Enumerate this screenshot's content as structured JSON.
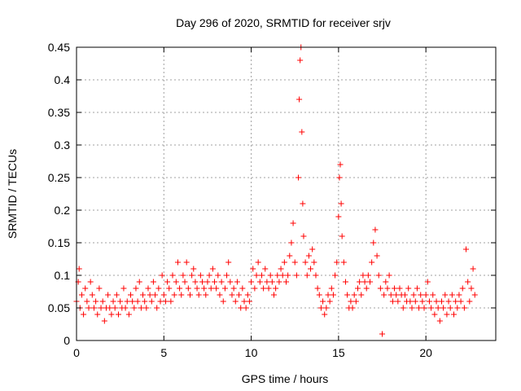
{
  "chart_data": {
    "type": "scatter",
    "title": "Day 296 of 2020, SRMTID for receiver srjv",
    "xlabel": "GPS time / hours",
    "ylabel": "SRMTID / TECUs",
    "xlim": [
      0,
      24
    ],
    "ylim": [
      0,
      0.45
    ],
    "xticks": [
      0,
      5,
      10,
      15,
      20
    ],
    "yticks": [
      0,
      0.05,
      0.1,
      0.15,
      0.2,
      0.25,
      0.3,
      0.35,
      0.4,
      0.45
    ],
    "xtick_labels": [
      "0",
      "5",
      "10",
      "15",
      "20"
    ],
    "ytick_labels": [
      "0",
      "0.05",
      "0.1",
      "0.15",
      "0.2",
      "0.25",
      "0.3",
      "0.35",
      "0.4",
      "0.45"
    ],
    "grid": true,
    "marker": "+",
    "colors": {
      "points": "#ff0000",
      "grid": "#a0a0a0",
      "axes": "#000000"
    },
    "series": [
      {
        "name": "srjv",
        "points": [
          [
            0.0,
            0.06
          ],
          [
            0.1,
            0.09
          ],
          [
            0.15,
            0.11
          ],
          [
            0.2,
            0.05
          ],
          [
            0.3,
            0.07
          ],
          [
            0.4,
            0.04
          ],
          [
            0.5,
            0.08
          ],
          [
            0.6,
            0.06
          ],
          [
            0.7,
            0.05
          ],
          [
            0.8,
            0.09
          ],
          [
            0.9,
            0.07
          ],
          [
            1.0,
            0.05
          ],
          [
            1.1,
            0.06
          ],
          [
            1.2,
            0.04
          ],
          [
            1.3,
            0.08
          ],
          [
            1.4,
            0.05
          ],
          [
            1.5,
            0.06
          ],
          [
            1.6,
            0.03
          ],
          [
            1.7,
            0.05
          ],
          [
            1.8,
            0.07
          ],
          [
            1.9,
            0.05
          ],
          [
            2.0,
            0.04
          ],
          [
            2.1,
            0.06
          ],
          [
            2.2,
            0.05
          ],
          [
            2.3,
            0.07
          ],
          [
            2.4,
            0.04
          ],
          [
            2.5,
            0.06
          ],
          [
            2.6,
            0.05
          ],
          [
            2.7,
            0.08
          ],
          [
            2.8,
            0.05
          ],
          [
            2.9,
            0.06
          ],
          [
            3.0,
            0.04
          ],
          [
            3.1,
            0.07
          ],
          [
            3.2,
            0.06
          ],
          [
            3.3,
            0.05
          ],
          [
            3.4,
            0.08
          ],
          [
            3.5,
            0.06
          ],
          [
            3.6,
            0.09
          ],
          [
            3.7,
            0.05
          ],
          [
            3.8,
            0.07
          ],
          [
            3.9,
            0.06
          ],
          [
            4.0,
            0.05
          ],
          [
            4.1,
            0.08
          ],
          [
            4.2,
            0.07
          ],
          [
            4.3,
            0.06
          ],
          [
            4.4,
            0.09
          ],
          [
            4.5,
            0.07
          ],
          [
            4.6,
            0.05
          ],
          [
            4.7,
            0.08
          ],
          [
            4.8,
            0.06
          ],
          [
            4.9,
            0.1
          ],
          [
            5.0,
            0.07
          ],
          [
            5.1,
            0.06
          ],
          [
            5.2,
            0.09
          ],
          [
            5.3,
            0.08
          ],
          [
            5.4,
            0.06
          ],
          [
            5.5,
            0.1
          ],
          [
            5.6,
            0.07
          ],
          [
            5.7,
            0.09
          ],
          [
            5.8,
            0.12
          ],
          [
            5.9,
            0.08
          ],
          [
            6.0,
            0.07
          ],
          [
            6.1,
            0.1
          ],
          [
            6.2,
            0.09
          ],
          [
            6.3,
            0.12
          ],
          [
            6.4,
            0.08
          ],
          [
            6.5,
            0.07
          ],
          [
            6.6,
            0.1
          ],
          [
            6.7,
            0.11
          ],
          [
            6.8,
            0.09
          ],
          [
            6.9,
            0.08
          ],
          [
            7.0,
            0.07
          ],
          [
            7.1,
            0.1
          ],
          [
            7.2,
            0.09
          ],
          [
            7.3,
            0.08
          ],
          [
            7.4,
            0.07
          ],
          [
            7.5,
            0.09
          ],
          [
            7.6,
            0.1
          ],
          [
            7.7,
            0.08
          ],
          [
            7.8,
            0.11
          ],
          [
            7.9,
            0.09
          ],
          [
            8.0,
            0.08
          ],
          [
            8.1,
            0.1
          ],
          [
            8.2,
            0.07
          ],
          [
            8.3,
            0.09
          ],
          [
            8.4,
            0.06
          ],
          [
            8.5,
            0.08
          ],
          [
            8.6,
            0.1
          ],
          [
            8.7,
            0.12
          ],
          [
            8.8,
            0.09
          ],
          [
            8.9,
            0.07
          ],
          [
            9.0,
            0.08
          ],
          [
            9.1,
            0.06
          ],
          [
            9.2,
            0.09
          ],
          [
            9.3,
            0.07
          ],
          [
            9.4,
            0.05
          ],
          [
            9.5,
            0.08
          ],
          [
            9.6,
            0.06
          ],
          [
            9.7,
            0.05
          ],
          [
            9.8,
            0.07
          ],
          [
            9.9,
            0.06
          ],
          [
            10.0,
            0.09
          ],
          [
            10.1,
            0.11
          ],
          [
            10.2,
            0.08
          ],
          [
            10.3,
            0.1
          ],
          [
            10.4,
            0.12
          ],
          [
            10.5,
            0.09
          ],
          [
            10.6,
            0.1
          ],
          [
            10.7,
            0.08
          ],
          [
            10.8,
            0.11
          ],
          [
            10.9,
            0.09
          ],
          [
            11.0,
            0.08
          ],
          [
            11.1,
            0.1
          ],
          [
            11.2,
            0.09
          ],
          [
            11.3,
            0.07
          ],
          [
            11.4,
            0.08
          ],
          [
            11.5,
            0.1
          ],
          [
            11.6,
            0.09
          ],
          [
            11.7,
            0.11
          ],
          [
            11.8,
            0.1
          ],
          [
            11.9,
            0.12
          ],
          [
            12.0,
            0.09
          ],
          [
            12.1,
            0.1
          ],
          [
            12.2,
            0.13
          ],
          [
            12.3,
            0.15
          ],
          [
            12.4,
            0.18
          ],
          [
            12.5,
            0.12
          ],
          [
            12.6,
            0.1
          ],
          [
            12.7,
            0.25
          ],
          [
            12.75,
            0.37
          ],
          [
            12.8,
            0.43
          ],
          [
            12.85,
            0.45
          ],
          [
            12.9,
            0.32
          ],
          [
            12.95,
            0.21
          ],
          [
            13.0,
            0.16
          ],
          [
            13.1,
            0.12
          ],
          [
            13.2,
            0.1
          ],
          [
            13.3,
            0.13
          ],
          [
            13.4,
            0.11
          ],
          [
            13.5,
            0.14
          ],
          [
            13.6,
            0.12
          ],
          [
            13.7,
            0.1
          ],
          [
            13.8,
            0.08
          ],
          [
            13.9,
            0.07
          ],
          [
            14.0,
            0.05
          ],
          [
            14.1,
            0.06
          ],
          [
            14.2,
            0.04
          ],
          [
            14.3,
            0.05
          ],
          [
            14.4,
            0.07
          ],
          [
            14.5,
            0.06
          ],
          [
            14.6,
            0.08
          ],
          [
            14.7,
            0.07
          ],
          [
            14.8,
            0.1
          ],
          [
            14.9,
            0.12
          ],
          [
            15.0,
            0.19
          ],
          [
            15.05,
            0.25
          ],
          [
            15.1,
            0.27
          ],
          [
            15.15,
            0.21
          ],
          [
            15.2,
            0.16
          ],
          [
            15.3,
            0.12
          ],
          [
            15.4,
            0.09
          ],
          [
            15.5,
            0.07
          ],
          [
            15.6,
            0.05
          ],
          [
            15.7,
            0.06
          ],
          [
            15.8,
            0.05
          ],
          [
            15.9,
            0.07
          ],
          [
            16.0,
            0.06
          ],
          [
            16.1,
            0.08
          ],
          [
            16.2,
            0.09
          ],
          [
            16.3,
            0.07
          ],
          [
            16.4,
            0.1
          ],
          [
            16.5,
            0.09
          ],
          [
            16.6,
            0.08
          ],
          [
            16.7,
            0.1
          ],
          [
            16.8,
            0.09
          ],
          [
            16.9,
            0.12
          ],
          [
            17.0,
            0.15
          ],
          [
            17.1,
            0.17
          ],
          [
            17.2,
            0.13
          ],
          [
            17.3,
            0.1
          ],
          [
            17.4,
            0.08
          ],
          [
            17.5,
            0.01
          ],
          [
            17.6,
            0.07
          ],
          [
            17.7,
            0.09
          ],
          [
            17.8,
            0.08
          ],
          [
            17.9,
            0.1
          ],
          [
            18.0,
            0.07
          ],
          [
            18.1,
            0.06
          ],
          [
            18.2,
            0.08
          ],
          [
            18.3,
            0.07
          ],
          [
            18.4,
            0.06
          ],
          [
            18.5,
            0.08
          ],
          [
            18.6,
            0.07
          ],
          [
            18.7,
            0.05
          ],
          [
            18.8,
            0.07
          ],
          [
            18.9,
            0.06
          ],
          [
            19.0,
            0.08
          ],
          [
            19.1,
            0.06
          ],
          [
            19.2,
            0.05
          ],
          [
            19.3,
            0.07
          ],
          [
            19.4,
            0.06
          ],
          [
            19.5,
            0.08
          ],
          [
            19.6,
            0.05
          ],
          [
            19.7,
            0.07
          ],
          [
            19.8,
            0.06
          ],
          [
            19.9,
            0.05
          ],
          [
            20.0,
            0.07
          ],
          [
            20.1,
            0.09
          ],
          [
            20.2,
            0.06
          ],
          [
            20.3,
            0.05
          ],
          [
            20.4,
            0.07
          ],
          [
            20.5,
            0.04
          ],
          [
            20.6,
            0.06
          ],
          [
            20.7,
            0.05
          ],
          [
            20.8,
            0.03
          ],
          [
            20.9,
            0.06
          ],
          [
            21.0,
            0.05
          ],
          [
            21.1,
            0.07
          ],
          [
            21.2,
            0.04
          ],
          [
            21.3,
            0.06
          ],
          [
            21.4,
            0.05
          ],
          [
            21.5,
            0.07
          ],
          [
            21.6,
            0.04
          ],
          [
            21.7,
            0.06
          ],
          [
            21.8,
            0.05
          ],
          [
            21.9,
            0.07
          ],
          [
            22.0,
            0.06
          ],
          [
            22.1,
            0.08
          ],
          [
            22.2,
            0.05
          ],
          [
            22.3,
            0.14
          ],
          [
            22.4,
            0.09
          ],
          [
            22.5,
            0.06
          ],
          [
            22.6,
            0.08
          ],
          [
            22.7,
            0.11
          ],
          [
            22.8,
            0.07
          ]
        ]
      }
    ]
  }
}
